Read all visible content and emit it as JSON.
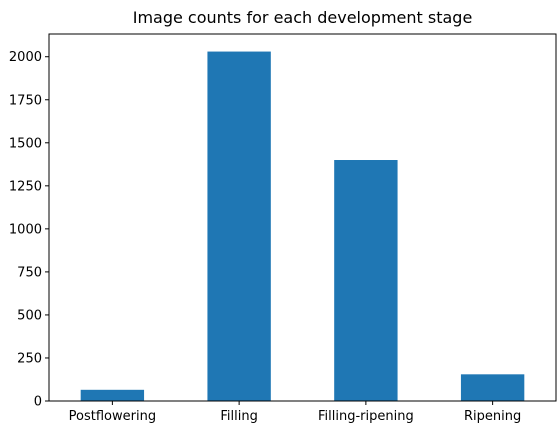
{
  "chart_data": {
    "type": "bar",
    "title": "Image counts for each development stage",
    "xlabel": "",
    "ylabel": "",
    "categories": [
      "Postflowering",
      "Filling",
      "Filling-ripening",
      "Ripening"
    ],
    "values": [
      65,
      2030,
      1400,
      155
    ],
    "ylim": [
      0,
      2132
    ],
    "yticks": [
      0,
      250,
      500,
      750,
      1000,
      1250,
      1500,
      1750,
      2000
    ],
    "grid": false,
    "legend": "none",
    "colors": {
      "bar": "#1f77b4"
    }
  }
}
